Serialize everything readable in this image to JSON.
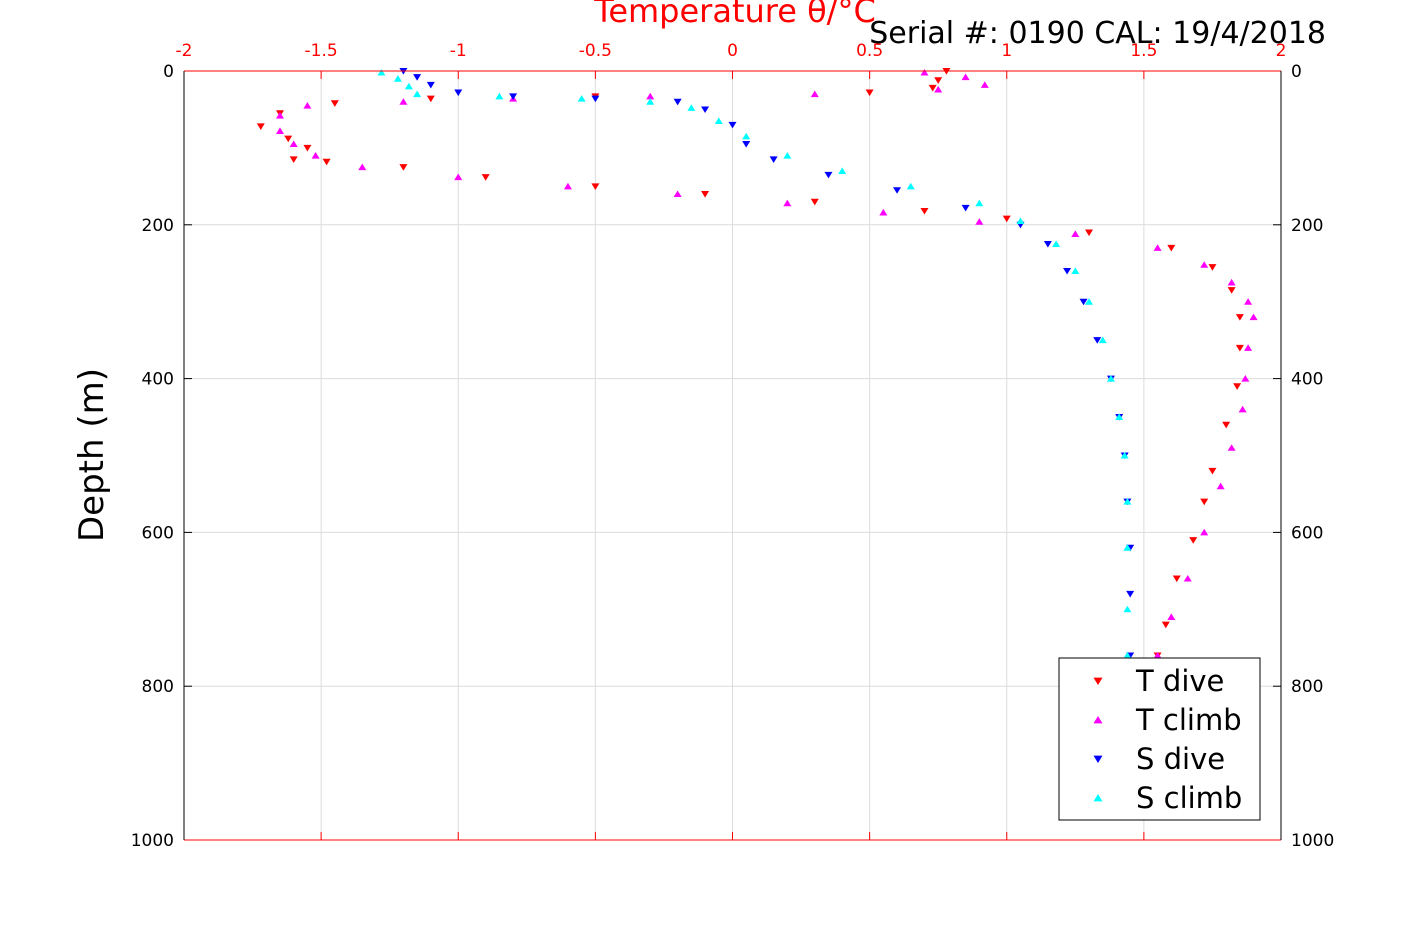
{
  "chart_data": {
    "type": "scatter",
    "x_title": "Temperature θ/°C",
    "serial_text": "Serial #: 0190  CAL: 19/4/2018",
    "ylabel": "Depth (m)",
    "xlim": [
      -2,
      2
    ],
    "ylim": [
      0,
      1000
    ],
    "y_reversed": true,
    "grid": true,
    "legend_position": "bottom-right",
    "x_ticks": [
      "-2",
      "-1.5",
      "-1",
      "-0.5",
      "0",
      "0.5",
      "1",
      "1.5",
      "2"
    ],
    "y_ticks": [
      "0",
      "200",
      "400",
      "600",
      "800",
      "1000"
    ],
    "series": [
      {
        "name": "T dive",
        "color": "#ff0000",
        "marker": "triangle-down",
        "points": [
          [
            0.78,
            0
          ],
          [
            0.75,
            12
          ],
          [
            0.73,
            22
          ],
          [
            0.5,
            28
          ],
          [
            -0.5,
            33
          ],
          [
            -1.1,
            36
          ],
          [
            -1.45,
            42
          ],
          [
            -1.65,
            55
          ],
          [
            -1.72,
            72
          ],
          [
            -1.62,
            88
          ],
          [
            -1.55,
            100
          ],
          [
            -1.6,
            115
          ],
          [
            -1.48,
            118
          ],
          [
            -1.2,
            125
          ],
          [
            -0.9,
            138
          ],
          [
            -0.5,
            150
          ],
          [
            -0.1,
            160
          ],
          [
            0.3,
            170
          ],
          [
            0.7,
            182
          ],
          [
            1.0,
            192
          ],
          [
            1.3,
            210
          ],
          [
            1.6,
            230
          ],
          [
            1.75,
            255
          ],
          [
            1.82,
            285
          ],
          [
            1.85,
            320
          ],
          [
            1.85,
            360
          ],
          [
            1.84,
            410
          ],
          [
            1.8,
            460
          ],
          [
            1.75,
            520
          ],
          [
            1.72,
            560
          ],
          [
            1.68,
            610
          ],
          [
            1.62,
            660
          ],
          [
            1.58,
            720
          ],
          [
            1.55,
            760
          ]
        ]
      },
      {
        "name": "T climb",
        "color": "#ff00ff",
        "marker": "triangle-up",
        "points": [
          [
            0.7,
            2
          ],
          [
            0.85,
            8
          ],
          [
            0.92,
            18
          ],
          [
            0.75,
            24
          ],
          [
            0.3,
            30
          ],
          [
            -0.3,
            33
          ],
          [
            -0.8,
            36
          ],
          [
            -1.2,
            40
          ],
          [
            -1.55,
            45
          ],
          [
            -1.65,
            58
          ],
          [
            -1.65,
            78
          ],
          [
            -1.6,
            95
          ],
          [
            -1.52,
            110
          ],
          [
            -1.35,
            125
          ],
          [
            -1.0,
            138
          ],
          [
            -0.6,
            150
          ],
          [
            -0.2,
            160
          ],
          [
            0.2,
            172
          ],
          [
            0.55,
            184
          ],
          [
            0.9,
            196
          ],
          [
            1.25,
            212
          ],
          [
            1.55,
            230
          ],
          [
            1.72,
            252
          ],
          [
            1.82,
            275
          ],
          [
            1.88,
            300
          ],
          [
            1.9,
            320
          ],
          [
            1.88,
            360
          ],
          [
            1.87,
            400
          ],
          [
            1.86,
            440
          ],
          [
            1.82,
            490
          ],
          [
            1.78,
            540
          ],
          [
            1.72,
            600
          ],
          [
            1.66,
            660
          ],
          [
            1.6,
            710
          ],
          [
            1.55,
            760
          ]
        ]
      },
      {
        "name": "S dive",
        "color": "#0000ff",
        "marker": "triangle-down",
        "points": [
          [
            -1.2,
            0
          ],
          [
            -1.15,
            8
          ],
          [
            -1.1,
            18
          ],
          [
            -1.0,
            28
          ],
          [
            -0.8,
            33
          ],
          [
            -0.5,
            36
          ],
          [
            -0.2,
            40
          ],
          [
            -0.1,
            50
          ],
          [
            0.0,
            70
          ],
          [
            0.05,
            95
          ],
          [
            0.15,
            115
          ],
          [
            0.35,
            135
          ],
          [
            0.6,
            155
          ],
          [
            0.85,
            178
          ],
          [
            1.05,
            200
          ],
          [
            1.15,
            225
          ],
          [
            1.22,
            260
          ],
          [
            1.28,
            300
          ],
          [
            1.33,
            350
          ],
          [
            1.38,
            400
          ],
          [
            1.41,
            450
          ],
          [
            1.43,
            500
          ],
          [
            1.44,
            560
          ],
          [
            1.45,
            620
          ],
          [
            1.45,
            680
          ],
          [
            1.45,
            760
          ]
        ]
      },
      {
        "name": "S climb",
        "color": "#00ffff",
        "marker": "triangle-up",
        "points": [
          [
            -1.28,
            2
          ],
          [
            -1.22,
            10
          ],
          [
            -1.18,
            20
          ],
          [
            -1.15,
            30
          ],
          [
            -0.85,
            33
          ],
          [
            -0.55,
            36
          ],
          [
            -0.3,
            40
          ],
          [
            -0.15,
            48
          ],
          [
            -0.05,
            65
          ],
          [
            0.05,
            85
          ],
          [
            0.2,
            110
          ],
          [
            0.4,
            130
          ],
          [
            0.65,
            150
          ],
          [
            0.9,
            172
          ],
          [
            1.05,
            195
          ],
          [
            1.18,
            225
          ],
          [
            1.25,
            260
          ],
          [
            1.3,
            300
          ],
          [
            1.35,
            350
          ],
          [
            1.38,
            400
          ],
          [
            1.41,
            450
          ],
          [
            1.43,
            500
          ],
          [
            1.44,
            560
          ],
          [
            1.44,
            620
          ],
          [
            1.44,
            700
          ],
          [
            1.44,
            760
          ]
        ]
      }
    ]
  }
}
